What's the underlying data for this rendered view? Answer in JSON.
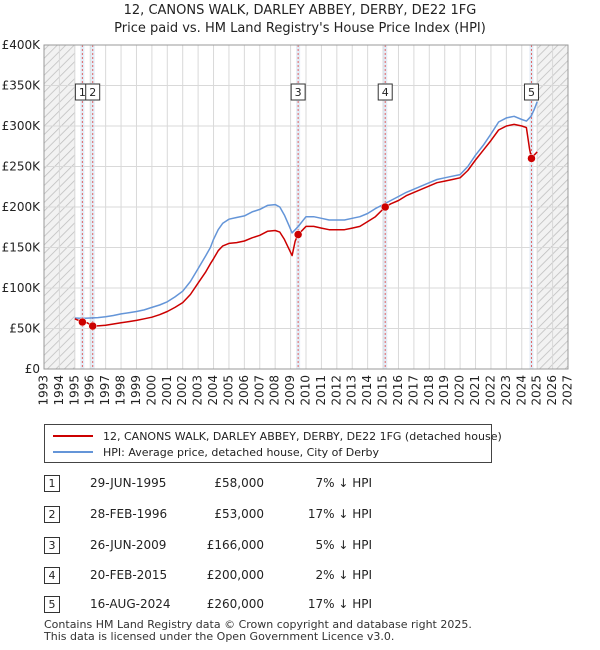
{
  "chart_data": {
    "type": "line",
    "title": "12, CANONS WALK, DARLEY ABBEY, DERBY, DE22 1FG",
    "subtitle": "Price paid vs. HM Land Registry's House Price Index (HPI)",
    "xlim": [
      1993,
      2027
    ],
    "ylim": [
      0,
      400000
    ],
    "x_ticks": [
      1993,
      1994,
      1995,
      1996,
      1997,
      1998,
      1999,
      2000,
      2001,
      2002,
      2003,
      2004,
      2005,
      2006,
      2007,
      2008,
      2009,
      2010,
      2011,
      2012,
      2013,
      2014,
      2015,
      2016,
      2017,
      2018,
      2019,
      2020,
      2021,
      2022,
      2023,
      2024,
      2025,
      2026,
      2027
    ],
    "y_ticks": [
      {
        "value": 0,
        "label": "£0"
      },
      {
        "value": 50000,
        "label": "£50K"
      },
      {
        "value": 100000,
        "label": "£100K"
      },
      {
        "value": 150000,
        "label": "£150K"
      },
      {
        "value": 200000,
        "label": "£200K"
      },
      {
        "value": 250000,
        "label": "£250K"
      },
      {
        "value": 300000,
        "label": "£300K"
      },
      {
        "value": 350000,
        "label": "£350K"
      },
      {
        "value": 400000,
        "label": "£400K"
      }
    ],
    "data_start": 1995.0,
    "data_end": 2025.0,
    "series": [
      {
        "name": "12, CANONS WALK, DARLEY ABBEY, DERBY, DE22 1FG (detached house)",
        "color": "#cc0000",
        "points": [
          [
            1995.0,
            62000
          ],
          [
            1995.49,
            58000
          ],
          [
            1995.8,
            57000
          ],
          [
            1996.16,
            53000
          ],
          [
            1996.6,
            53500
          ],
          [
            1997.0,
            54000
          ],
          [
            1997.5,
            55500
          ],
          [
            1998.0,
            57000
          ],
          [
            1998.5,
            58500
          ],
          [
            1999.0,
            60000
          ],
          [
            1999.5,
            62000
          ],
          [
            2000.0,
            64000
          ],
          [
            2000.5,
            67000
          ],
          [
            2001.0,
            71000
          ],
          [
            2001.5,
            76000
          ],
          [
            2002.0,
            82000
          ],
          [
            2002.5,
            92000
          ],
          [
            2003.0,
            106000
          ],
          [
            2003.5,
            120000
          ],
          [
            2003.8,
            130000
          ],
          [
            2004.0,
            136000
          ],
          [
            2004.3,
            146000
          ],
          [
            2004.6,
            152000
          ],
          [
            2005.0,
            155000
          ],
          [
            2005.5,
            156000
          ],
          [
            2006.0,
            158000
          ],
          [
            2006.5,
            162000
          ],
          [
            2007.0,
            165000
          ],
          [
            2007.5,
            170000
          ],
          [
            2008.0,
            171000
          ],
          [
            2008.3,
            169000
          ],
          [
            2008.6,
            160000
          ],
          [
            2008.9,
            148000
          ],
          [
            2009.1,
            140000
          ],
          [
            2009.3,
            158000
          ],
          [
            2009.49,
            166000
          ],
          [
            2009.8,
            172000
          ],
          [
            2010.0,
            176000
          ],
          [
            2010.5,
            176000
          ],
          [
            2011.0,
            174000
          ],
          [
            2011.5,
            172000
          ],
          [
            2012.0,
            172000
          ],
          [
            2012.5,
            172000
          ],
          [
            2013.0,
            174000
          ],
          [
            2013.5,
            176000
          ],
          [
            2014.0,
            182000
          ],
          [
            2014.5,
            188000
          ],
          [
            2015.14,
            200000
          ],
          [
            2015.5,
            204000
          ],
          [
            2016.0,
            208000
          ],
          [
            2016.5,
            214000
          ],
          [
            2017.0,
            218000
          ],
          [
            2017.5,
            222000
          ],
          [
            2018.0,
            226000
          ],
          [
            2018.5,
            230000
          ],
          [
            2019.0,
            232000
          ],
          [
            2019.5,
            234000
          ],
          [
            2020.0,
            236000
          ],
          [
            2020.5,
            245000
          ],
          [
            2021.0,
            258000
          ],
          [
            2021.5,
            270000
          ],
          [
            2022.0,
            282000
          ],
          [
            2022.5,
            295000
          ],
          [
            2023.0,
            300000
          ],
          [
            2023.5,
            302000
          ],
          [
            2024.0,
            300000
          ],
          [
            2024.3,
            298000
          ],
          [
            2024.5,
            272000
          ],
          [
            2024.63,
            260000
          ],
          [
            2024.8,
            264000
          ],
          [
            2025.0,
            268000
          ]
        ]
      },
      {
        "name": "HPI: Average price, detached house, City of Derby",
        "color": "#6495d8",
        "points": [
          [
            1995.0,
            63000
          ],
          [
            1995.5,
            62500
          ],
          [
            1996.0,
            63000
          ],
          [
            1996.5,
            63500
          ],
          [
            1997.0,
            64500
          ],
          [
            1997.5,
            66000
          ],
          [
            1998.0,
            68000
          ],
          [
            1998.5,
            69500
          ],
          [
            1999.0,
            71000
          ],
          [
            1999.5,
            73000
          ],
          [
            2000.0,
            76000
          ],
          [
            2000.5,
            79000
          ],
          [
            2001.0,
            83000
          ],
          [
            2001.5,
            89000
          ],
          [
            2002.0,
            96000
          ],
          [
            2002.5,
            108000
          ],
          [
            2003.0,
            124000
          ],
          [
            2003.5,
            140000
          ],
          [
            2003.8,
            150000
          ],
          [
            2004.0,
            160000
          ],
          [
            2004.3,
            172000
          ],
          [
            2004.6,
            180000
          ],
          [
            2005.0,
            185000
          ],
          [
            2005.5,
            187000
          ],
          [
            2006.0,
            189000
          ],
          [
            2006.5,
            194000
          ],
          [
            2007.0,
            197000
          ],
          [
            2007.5,
            202000
          ],
          [
            2008.0,
            203000
          ],
          [
            2008.3,
            200000
          ],
          [
            2008.6,
            190000
          ],
          [
            2008.9,
            177000
          ],
          [
            2009.1,
            168000
          ],
          [
            2009.3,
            172000
          ],
          [
            2009.5,
            176000
          ],
          [
            2010.0,
            188000
          ],
          [
            2010.5,
            188000
          ],
          [
            2011.0,
            186000
          ],
          [
            2011.5,
            184000
          ],
          [
            2012.0,
            184000
          ],
          [
            2012.5,
            184000
          ],
          [
            2013.0,
            186000
          ],
          [
            2013.5,
            188000
          ],
          [
            2014.0,
            192000
          ],
          [
            2014.5,
            198000
          ],
          [
            2015.0,
            203000
          ],
          [
            2015.5,
            208000
          ],
          [
            2016.0,
            213000
          ],
          [
            2016.5,
            218000
          ],
          [
            2017.0,
            222000
          ],
          [
            2017.5,
            226000
          ],
          [
            2018.0,
            230000
          ],
          [
            2018.5,
            234000
          ],
          [
            2019.0,
            236000
          ],
          [
            2019.5,
            238000
          ],
          [
            2020.0,
            240000
          ],
          [
            2020.5,
            250000
          ],
          [
            2021.0,
            264000
          ],
          [
            2021.5,
            276000
          ],
          [
            2022.0,
            290000
          ],
          [
            2022.5,
            305000
          ],
          [
            2023.0,
            310000
          ],
          [
            2023.5,
            312000
          ],
          [
            2024.0,
            308000
          ],
          [
            2024.3,
            306000
          ],
          [
            2024.6,
            312000
          ],
          [
            2024.8,
            320000
          ],
          [
            2025.0,
            330000
          ]
        ]
      }
    ],
    "sales": [
      {
        "id": "1",
        "x": 1995.49,
        "price": 58000
      },
      {
        "id": "2",
        "x": 1996.16,
        "price": 53000
      },
      {
        "id": "3",
        "x": 2009.49,
        "price": 166000
      },
      {
        "id": "4",
        "x": 2015.14,
        "price": 200000
      },
      {
        "id": "5",
        "x": 2024.63,
        "price": 260000
      }
    ],
    "legend": {
      "property": "12, CANONS WALK, DARLEY ABBEY, DERBY, DE22 1FG (detached house)",
      "hpi": "HPI: Average price, detached house, City of Derby"
    }
  },
  "transactions": [
    {
      "num": "1",
      "date": "29-JUN-1995",
      "price": "£58,000",
      "hpi": "7% ↓ HPI"
    },
    {
      "num": "2",
      "date": "28-FEB-1996",
      "price": "£53,000",
      "hpi": "17% ↓ HPI"
    },
    {
      "num": "3",
      "date": "26-JUN-2009",
      "price": "£166,000",
      "hpi": "5% ↓ HPI"
    },
    {
      "num": "4",
      "date": "20-FEB-2015",
      "price": "£200,000",
      "hpi": "2% ↓ HPI"
    },
    {
      "num": "5",
      "date": "16-AUG-2024",
      "price": "£260,000",
      "hpi": "17% ↓ HPI"
    }
  ],
  "footer": {
    "line1": "Contains HM Land Registry data © Crown copyright and database right 2025.",
    "line2": "This data is licensed under the Open Government Licence v3.0."
  },
  "colors": {
    "property": "#cc0000",
    "hpi": "#6495d8",
    "grid": "#d9d9d9",
    "band": "#dce6f2"
  }
}
